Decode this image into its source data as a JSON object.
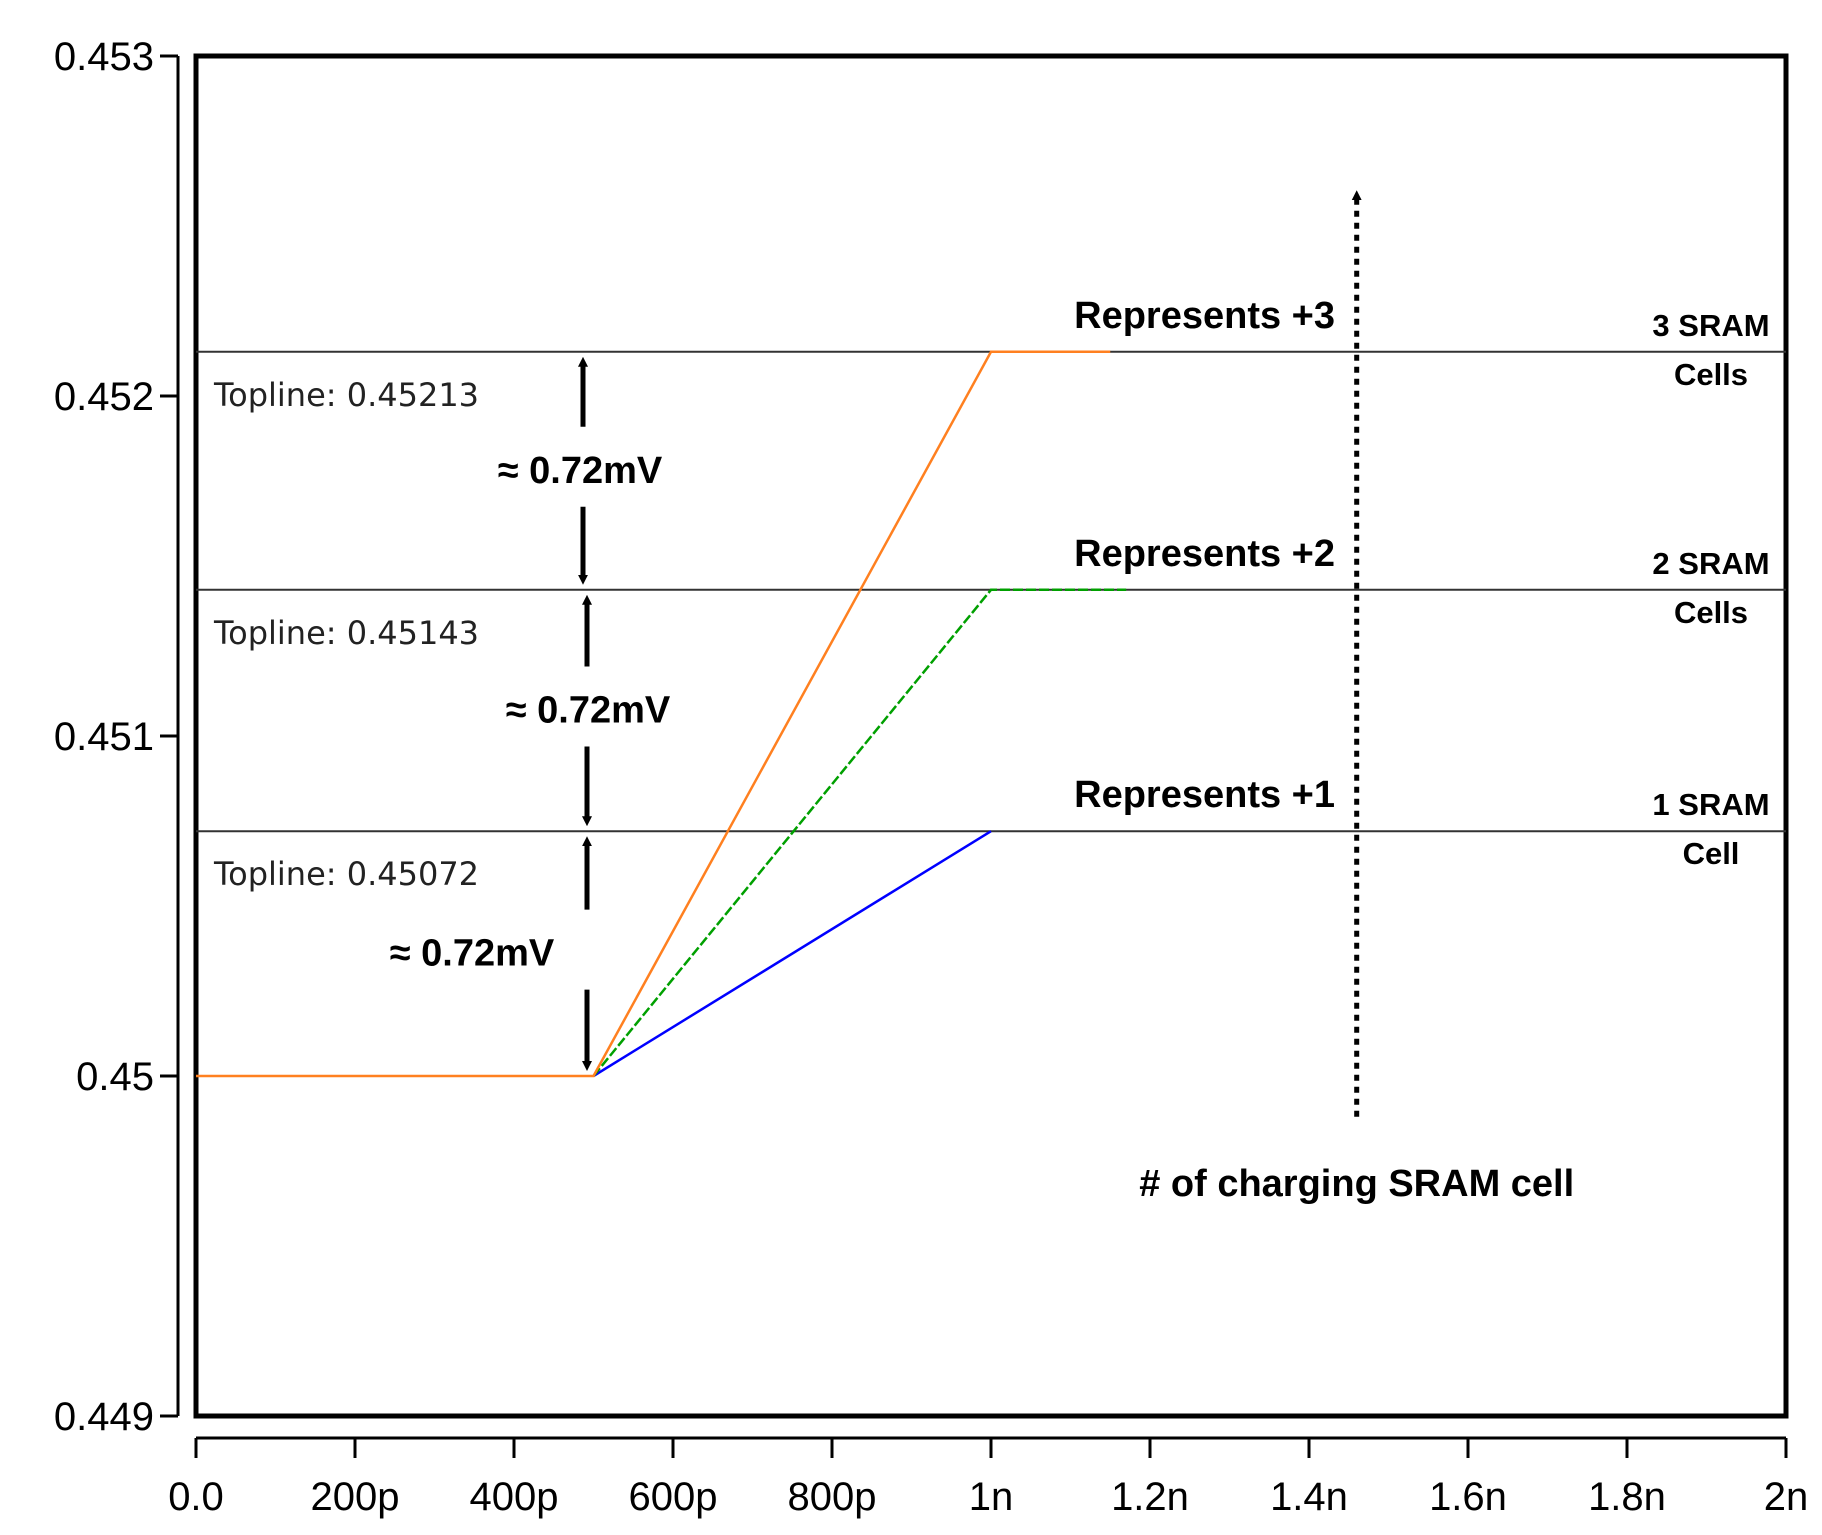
{
  "chart_data": {
    "type": "line",
    "title": "",
    "xlabel": "",
    "ylabel": "",
    "xlim": [
      0,
      2e-09
    ],
    "ylim": [
      0.449,
      0.453
    ],
    "x_ticks": [
      {
        "value": 0,
        "label": "0.0"
      },
      {
        "value": 2e-10,
        "label": "200p"
      },
      {
        "value": 4e-10,
        "label": "400p"
      },
      {
        "value": 6e-10,
        "label": "600p"
      },
      {
        "value": 8e-10,
        "label": "800p"
      },
      {
        "value": 1e-09,
        "label": "1n"
      },
      {
        "value": 1.2e-09,
        "label": "1.2n"
      },
      {
        "value": 1.4e-09,
        "label": "1.4n"
      },
      {
        "value": 1.6e-09,
        "label": "1.6n"
      },
      {
        "value": 1.8e-09,
        "label": "1.8n"
      },
      {
        "value": 2e-09,
        "label": "2n"
      }
    ],
    "y_ticks": [
      {
        "value": 0.449,
        "label": "0.449"
      },
      {
        "value": 0.45,
        "label": "0.45"
      },
      {
        "value": 0.451,
        "label": "0.451"
      },
      {
        "value": 0.452,
        "label": "0.452"
      },
      {
        "value": 0.453,
        "label": "0.453"
      }
    ],
    "series": [
      {
        "color": "#0000ff",
        "points": [
          [
            5e-10,
            0.45
          ],
          [
            1e-09,
            0.45072
          ]
        ]
      },
      {
        "color": "#00a000",
        "dashed": true,
        "points": [
          [
            5e-10,
            0.45
          ],
          [
            1e-09,
            0.45143
          ],
          [
            1.17e-09,
            0.45143
          ]
        ]
      },
      {
        "color": "#ff8020",
        "points": [
          [
            0,
            0.45
          ],
          [
            5e-10,
            0.45
          ],
          [
            1e-09,
            0.45213
          ],
          [
            1.15e-09,
            0.45213
          ]
        ]
      }
    ],
    "toplines": [
      {
        "value": 0.45213,
        "label": "Topline: 0.45213",
        "represents": "Represents +3",
        "cells_line1": "3 SRAM",
        "cells_line2": "Cells"
      },
      {
        "value": 0.45143,
        "label": "Topline: 0.45143",
        "represents": "Represents +2",
        "cells_line1": "2 SRAM",
        "cells_line2": "Cells"
      },
      {
        "value": 0.45072,
        "label": "Topline: 0.45072",
        "represents": "Represents +1",
        "cells_line1": "1 SRAM",
        "cells_line2": "Cell"
      }
    ],
    "deltas": [
      {
        "from": 0.45143,
        "to": 0.45213,
        "label": "≈ 0.72mV"
      },
      {
        "from": 0.45072,
        "to": 0.45143,
        "label": "≈ 0.72mV"
      },
      {
        "from": 0.45,
        "to": 0.45072,
        "label": "≈ 0.72mV"
      }
    ],
    "annotation": {
      "label": "# of charging SRAM cell",
      "arrow_x": 1.46e-09,
      "arrow_from": 0.44988,
      "arrow_to": 0.45262
    }
  }
}
